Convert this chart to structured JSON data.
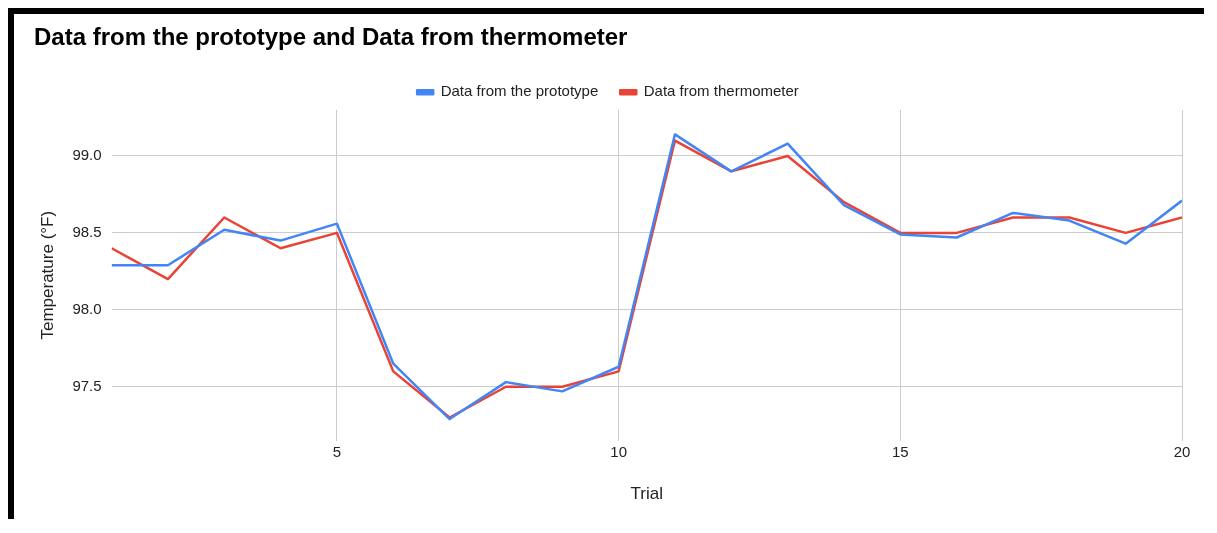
{
  "chart_data": {
    "type": "line",
    "title": "Data from the prototype and Data from thermometer",
    "xlabel": "Trial",
    "ylabel": "Temperature (°F)",
    "x": [
      1,
      2,
      3,
      4,
      5,
      6,
      7,
      8,
      9,
      10,
      11,
      12,
      13,
      14,
      15,
      16,
      17,
      18,
      19,
      20
    ],
    "series": [
      {
        "name": "Data from the prototype",
        "color": "#4285f4",
        "values": [
          98.29,
          98.29,
          98.52,
          98.45,
          98.56,
          97.65,
          97.29,
          97.53,
          97.47,
          97.63,
          99.14,
          98.9,
          99.08,
          98.68,
          98.49,
          98.47,
          98.63,
          98.58,
          98.43,
          98.71
        ]
      },
      {
        "name": "Data from thermometer",
        "color": "#ea4335",
        "values": [
          98.4,
          98.2,
          98.6,
          98.4,
          98.5,
          97.6,
          97.3,
          97.5,
          97.5,
          97.6,
          99.1,
          98.9,
          99.0,
          98.7,
          98.5,
          98.5,
          98.6,
          98.6,
          98.5,
          98.6
        ]
      }
    ],
    "xlim": [
      1,
      20
    ],
    "xticks": [
      5,
      10,
      15,
      20
    ],
    "ylim": [
      97.15,
      99.3
    ],
    "yticks": [
      {
        "value": 97.5,
        "label": "97.5"
      },
      {
        "value": 98,
        "label": "98.0"
      },
      {
        "value": 98.5,
        "label": "98.5"
      },
      {
        "value": 99,
        "label": "99.0"
      }
    ],
    "grid": true,
    "legend": "top",
    "marker": "none",
    "line_style": "solid"
  }
}
